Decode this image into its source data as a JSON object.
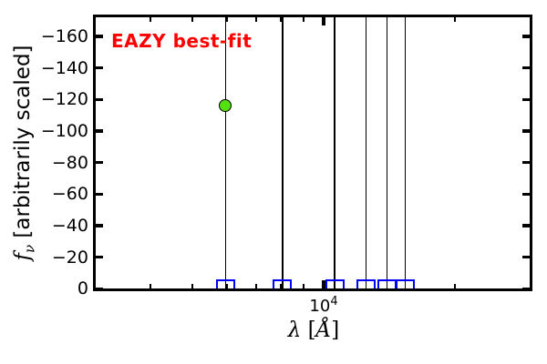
{
  "figure": {
    "annotation": {
      "text": "EAZY best-fit",
      "color": "#ff0000"
    },
    "ylabel": {
      "symbol": "f",
      "subscript": "ν",
      "rest": " [arbitrarily scaled]"
    },
    "xlabel": {
      "lambda": "λ",
      "bracket_open": " [",
      "angstrom": "Å",
      "bracket_close": "]"
    }
  },
  "chart_data": {
    "type": "scatter",
    "title": "",
    "annotation": "EAZY best-fit",
    "xlabel": "λ [Å]",
    "ylabel": "f_ν [arbitrarily scaled]",
    "xscale": "log",
    "xlim": [
      3000,
      30000
    ],
    "ylim": [
      2,
      -172
    ],
    "y_axis_inverted": true,
    "grid": false,
    "x_major_ticks": [
      10000
    ],
    "x_major_tick_label": {
      "base": "10",
      "exp": "4"
    },
    "x_minor_ticks": [
      4000,
      5000,
      6000,
      7000,
      8000,
      9000,
      20000
    ],
    "y_tick_values": [
      0,
      -20,
      -40,
      -60,
      -80,
      -100,
      -120,
      -140,
      -160
    ],
    "y_tick_labels": [
      "0",
      "−20",
      "−40",
      "−60",
      "−80",
      "−100",
      "−120",
      "−140",
      "−160"
    ],
    "series": [
      {
        "name": "filter-pivot-lines",
        "type": "vline",
        "color": "#000000",
        "x": [
          5950,
          8050,
          10600,
          12500,
          13950,
          15400
        ]
      },
      {
        "name": "observed-photometry",
        "type": "scatter",
        "marker": "open-square",
        "color": "#0000ff",
        "points": [
          {
            "x": 5950,
            "y": 0
          },
          {
            "x": 8050,
            "y": 0
          },
          {
            "x": 10600,
            "y": 0
          },
          {
            "x": 12500,
            "y": 0
          },
          {
            "x": 13950,
            "y": 0
          },
          {
            "x": 15400,
            "y": 0
          }
        ]
      },
      {
        "name": "best-fit-photometry",
        "type": "scatter",
        "marker": "filled-circle",
        "color": "#55e011",
        "edge_color": "#000000",
        "points": [
          {
            "x": 5950,
            "y": -116
          }
        ]
      }
    ]
  }
}
